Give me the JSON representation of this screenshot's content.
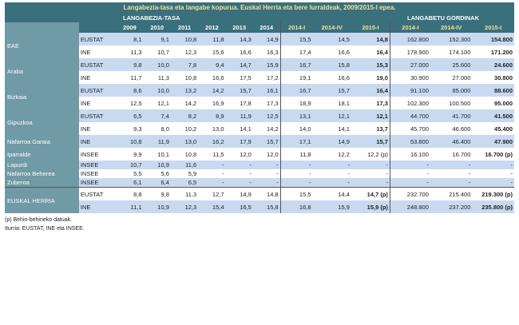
{
  "title": "Langabezia-tasa eta langabe kopurua. Euskal Herria eta bere lurraldeak, 2009/2015-I epea.",
  "group_headers": {
    "rate": "LANGABEZIA-TASA",
    "count": "LANGABETU GORDINAK"
  },
  "columns": [
    "2009",
    "2010",
    "2011",
    "2012",
    "2013",
    "2014",
    "2014-I",
    "2014-IV",
    "2015-I",
    "2014-I",
    "2014-IV",
    "2015-I"
  ],
  "regions": {
    "eae": "EAE",
    "araba": "Araba",
    "bizkaia": "Bizkaia",
    "gipuzkoa": "Gipuzkoa",
    "nafarroa": "Nafarroa Garaia",
    "iparralde": "Iparralde",
    "lapurdi": "Lapurdi",
    "nafarroa_beherea": "Nafarroa Beherea",
    "zuberoa": "Zuberoa",
    "euskal_herria": "EUSKAL HERRIA"
  },
  "rows": [
    {
      "src": "EUSTAT",
      "v": [
        "8,1",
        "9,1",
        "10,8",
        "11,8",
        "14,3",
        "14,9",
        "15,5",
        "14,5",
        "14,8",
        "162.800",
        "152.300",
        "154.800"
      ]
    },
    {
      "src": "INE",
      "v": [
        "11,3",
        "10,7",
        "12,3",
        "15,6",
        "16,6",
        "16,3",
        "17,4",
        "16,6",
        "16,4",
        "178.900",
        "174.100",
        "171.200"
      ]
    },
    {
      "src": "EUSTAT",
      "v": [
        "9,8",
        "10,0",
        "7,8",
        "9,4",
        "14,7",
        "15,9",
        "16,7",
        "15,8",
        "15,3",
        "27.000",
        "25.600",
        "24.600"
      ]
    },
    {
      "src": "INE",
      "v": [
        "11,7",
        "11,3",
        "10,8",
        "16,6",
        "17,5",
        "17,2",
        "19,1",
        "16,6",
        "19,0",
        "30.900",
        "27.000",
        "30.800"
      ]
    },
    {
      "src": "EUSTAT",
      "v": [
        "8,6",
        "10,0",
        "13,2",
        "14,2",
        "15,7",
        "16,1",
        "16,7",
        "15,7",
        "16,4",
        "91.100",
        "85.000",
        "88.600"
      ]
    },
    {
      "src": "INE",
      "v": [
        "12,5",
        "12,1",
        "14,2",
        "16,9",
        "17,8",
        "17,3",
        "18,9",
        "18,1",
        "17,3",
        "102.300",
        "100.500",
        "95.000"
      ]
    },
    {
      "src": "EUSTAT",
      "v": [
        "6,5",
        "7,4",
        "8,2",
        "8,9",
        "11,9",
        "12,5",
        "13,1",
        "12,1",
        "12,1",
        "44.700",
        "41.700",
        "41.500"
      ]
    },
    {
      "src": "INE",
      "v": [
        "9,3",
        "8,0",
        "10,2",
        "13,0",
        "14,1",
        "14,2",
        "14,0",
        "14,1",
        "13,7",
        "45.700",
        "46.600",
        "45.400"
      ]
    },
    {
      "src": "INE",
      "v": [
        "10,8",
        "11,9",
        "13,0",
        "16,2",
        "17,9",
        "15,7",
        "17,1",
        "14,9",
        "15,7",
        "53.800",
        "46.400",
        "47.900"
      ]
    },
    {
      "src": "INSEE",
      "v": [
        "9,9",
        "10,1",
        "10,8",
        "11,5",
        "12,0",
        "12,0",
        "11,8",
        "12,2",
        "12,2 (p)",
        "16.100",
        "16.700",
        "16.700 (p)"
      ]
    },
    {
      "src": "INSEE",
      "v": [
        "10,7",
        "10,9",
        "11,6",
        "-",
        "-",
        "-",
        "-",
        "-",
        "-",
        "-",
        "-",
        "-"
      ]
    },
    {
      "src": "INSEE",
      "v": [
        "5,5",
        "5,6",
        "5,9",
        "-",
        "-",
        "-",
        "-",
        "-",
        "-",
        "-",
        "-",
        "-"
      ]
    },
    {
      "src": "INSEE",
      "v": [
        "6,1",
        "6,4",
        "6,5",
        "-",
        "-",
        "-",
        "-",
        "-",
        "-",
        "-",
        "-",
        "-"
      ]
    },
    {
      "src": "EUSTAT",
      "v": [
        "8,8",
        "9,8",
        "11,3",
        "12,7",
        "14,9",
        "14,8",
        "15,5",
        "14,4",
        "14,7 (p)",
        "232.700",
        "215.400",
        "219.300 (p)"
      ]
    },
    {
      "src": "INE",
      "v": [
        "11,1",
        "10,9",
        "12,3",
        "15,4",
        "16,5",
        "15,8",
        "16,8",
        "15,9",
        "15,9 (p)",
        "248.800",
        "237.200",
        "235.800 (p)"
      ]
    }
  ],
  "notes": [
    "(p) Behin-behineko datuak.",
    "Iturria: EUSTAT, INE eta INSEE."
  ]
}
